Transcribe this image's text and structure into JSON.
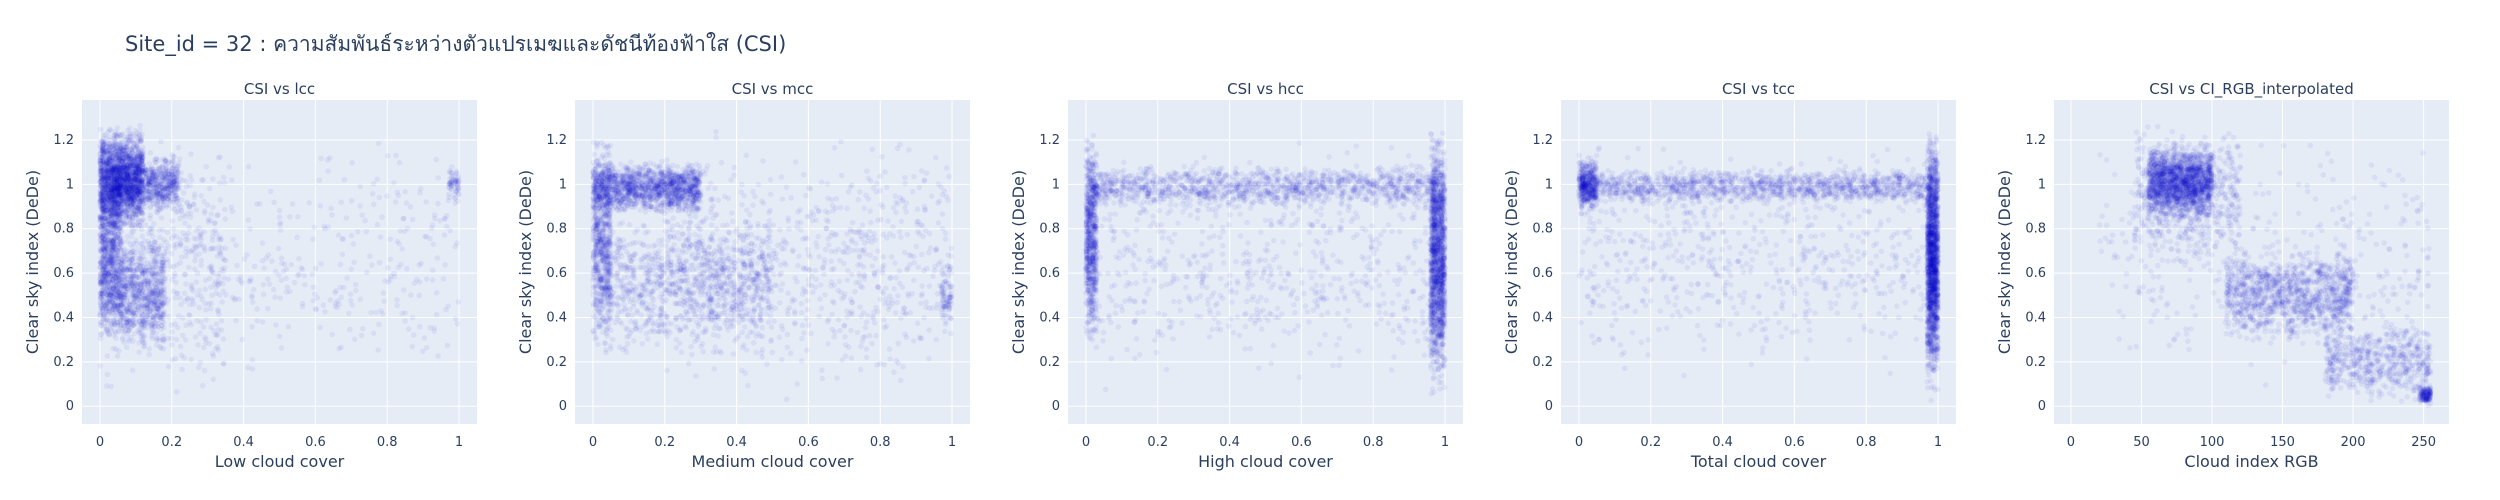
{
  "title": "Site_id = 32 : ความสัมพันธ์ระหว่างตัวแปรเมฆและดัชนีท้องฟ้าใส (CSI)",
  "colors": {
    "marker": "#0000cc",
    "plot_bg": "#e5ecf6",
    "grid": "#ffffff",
    "text": "#2a3f5f"
  },
  "chart_data": [
    {
      "type": "scatter",
      "title": "CSI vs lcc",
      "xlabel": "Low cloud cover",
      "ylabel": "Clear sky index (DeDe)",
      "xlim": [
        -0.05,
        1.05
      ],
      "ylim": [
        -0.08,
        1.38
      ],
      "xticks": [
        0,
        0.2,
        0.4,
        0.6,
        0.8,
        1
      ],
      "xtick_labels": [
        "0",
        "0.2",
        "0.4",
        "0.6",
        "0.8",
        "1"
      ],
      "yticks": [
        0,
        0.2,
        0.4,
        0.6,
        0.8,
        1,
        1.2
      ],
      "ytick_labels": [
        "0",
        "0.2",
        "0.4",
        "0.6",
        "0.8",
        "1",
        "1.2"
      ],
      "grid": true,
      "clusters": [
        {
          "n": 1500,
          "x": [
            0,
            0.12
          ],
          "y": [
            0.75,
            1.3
          ]
        },
        {
          "n": 800,
          "x": [
            0,
            0.06
          ],
          "y": [
            0.3,
            1.3
          ]
        },
        {
          "n": 900,
          "x": [
            0.03,
            0.22
          ],
          "y": [
            0.85,
            1.15
          ]
        },
        {
          "n": 1000,
          "x": [
            0,
            0.18
          ],
          "y": [
            0.2,
            0.8
          ]
        },
        {
          "n": 500,
          "x": [
            0,
            0.35
          ],
          "y": [
            0.0,
            1.3
          ]
        },
        {
          "n": 350,
          "x": [
            0.2,
            1.0
          ],
          "y": [
            0.0,
            1.3
          ]
        },
        {
          "n": 60,
          "x": [
            0.97,
            1.0
          ],
          "y": [
            0.9,
            1.1
          ]
        }
      ]
    },
    {
      "type": "scatter",
      "title": "CSI vs mcc",
      "xlabel": "Medium cloud cover",
      "ylabel": "Clear sky index (DeDe)",
      "xlim": [
        -0.05,
        1.05
      ],
      "ylim": [
        -0.08,
        1.38
      ],
      "xticks": [
        0,
        0.2,
        0.4,
        0.6,
        0.8,
        1
      ],
      "xtick_labels": [
        "0",
        "0.2",
        "0.4",
        "0.6",
        "0.8",
        "1"
      ],
      "yticks": [
        0,
        0.2,
        0.4,
        0.6,
        0.8,
        1,
        1.2
      ],
      "ytick_labels": [
        "0",
        "0.2",
        "0.4",
        "0.6",
        "0.8",
        "1",
        "1.2"
      ],
      "grid": true,
      "clusters": [
        {
          "n": 1500,
          "x": [
            0,
            0.3
          ],
          "y": [
            0.85,
            1.12
          ]
        },
        {
          "n": 600,
          "x": [
            0,
            0.05
          ],
          "y": [
            0.2,
            1.3
          ]
        },
        {
          "n": 1100,
          "x": [
            0,
            0.5
          ],
          "y": [
            0.2,
            0.9
          ]
        },
        {
          "n": 800,
          "x": [
            0.2,
            1.0
          ],
          "y": [
            0.0,
            1.3
          ]
        },
        {
          "n": 80,
          "x": [
            0.97,
            1.0
          ],
          "y": [
            0.3,
            0.7
          ]
        }
      ]
    },
    {
      "type": "scatter",
      "title": "CSI vs hcc",
      "xlabel": "High cloud cover",
      "ylabel": "Clear sky index (DeDe)",
      "xlim": [
        -0.05,
        1.05
      ],
      "ylim": [
        -0.08,
        1.38
      ],
      "xticks": [
        0,
        0.2,
        0.4,
        0.6,
        0.8,
        1
      ],
      "xtick_labels": [
        "0",
        "0.2",
        "0.4",
        "0.6",
        "0.8",
        "1"
      ],
      "yticks": [
        0,
        0.2,
        0.4,
        0.6,
        0.8,
        1,
        1.2
      ],
      "ytick_labels": [
        "0",
        "0.2",
        "0.4",
        "0.6",
        "0.8",
        "1",
        "1.2"
      ],
      "grid": true,
      "clusters": [
        {
          "n": 1300,
          "x": [
            0,
            1.0
          ],
          "y": [
            0.88,
            1.1
          ]
        },
        {
          "n": 700,
          "x": [
            0,
            0.03
          ],
          "y": [
            0.2,
            1.3
          ]
        },
        {
          "n": 1500,
          "x": [
            0.96,
            1.0
          ],
          "y": [
            0.0,
            1.3
          ]
        },
        {
          "n": 700,
          "x": [
            0,
            1.0
          ],
          "y": [
            0.0,
            1.3
          ]
        }
      ]
    },
    {
      "type": "scatter",
      "title": "CSI vs tcc",
      "xlabel": "Total cloud cover",
      "ylabel": "Clear sky index (DeDe)",
      "xlim": [
        -0.05,
        1.05
      ],
      "ylim": [
        -0.08,
        1.38
      ],
      "xticks": [
        0,
        0.2,
        0.4,
        0.6,
        0.8,
        1
      ],
      "xtick_labels": [
        "0",
        "0.2",
        "0.4",
        "0.6",
        "0.8",
        "1"
      ],
      "yticks": [
        0,
        0.2,
        0.4,
        0.6,
        0.8,
        1,
        1.2
      ],
      "ytick_labels": [
        "0",
        "0.2",
        "0.4",
        "0.6",
        "0.8",
        "1",
        "1.2"
      ],
      "grid": true,
      "clusters": [
        {
          "n": 1400,
          "x": [
            0,
            1.0
          ],
          "y": [
            0.9,
            1.08
          ]
        },
        {
          "n": 400,
          "x": [
            0,
            0.05
          ],
          "y": [
            0.85,
            1.15
          ]
        },
        {
          "n": 1800,
          "x": [
            0.97,
            1.0
          ],
          "y": [
            0.0,
            1.3
          ]
        },
        {
          "n": 700,
          "x": [
            0,
            1.0
          ],
          "y": [
            0.05,
            1.3
          ]
        }
      ]
    },
    {
      "type": "scatter",
      "title": "CSI vs CI_RGB_interpolated",
      "xlabel": "Cloud index RGB",
      "ylabel": "Clear sky index (DeDe)",
      "xlim": [
        -12,
        268
      ],
      "ylim": [
        -0.08,
        1.38
      ],
      "xticks": [
        0,
        50,
        100,
        150,
        200,
        250
      ],
      "xtick_labels": [
        "0",
        "50",
        "100",
        "150",
        "200",
        "250"
      ],
      "yticks": [
        0,
        0.2,
        0.4,
        0.6,
        0.8,
        1,
        1.2
      ],
      "ytick_labels": [
        "0",
        "0.2",
        "0.4",
        "0.6",
        "0.8",
        "1",
        "1.2"
      ],
      "grid": true,
      "clusters": [
        {
          "n": 1700,
          "x": [
            55,
            100
          ],
          "y": [
            0.82,
            1.2
          ]
        },
        {
          "n": 600,
          "x": [
            45,
            120
          ],
          "y": [
            0.6,
            1.3
          ]
        },
        {
          "n": 1200,
          "x": [
            110,
            200
          ],
          "y": [
            0.25,
            0.75
          ]
        },
        {
          "n": 600,
          "x": [
            180,
            255
          ],
          "y": [
            0.0,
            0.4
          ]
        },
        {
          "n": 150,
          "x": [
            247,
            255
          ],
          "y": [
            0.0,
            0.1
          ]
        },
        {
          "n": 400,
          "x": [
            20,
            255
          ],
          "y": [
            0.0,
            1.3
          ]
        }
      ]
    }
  ]
}
